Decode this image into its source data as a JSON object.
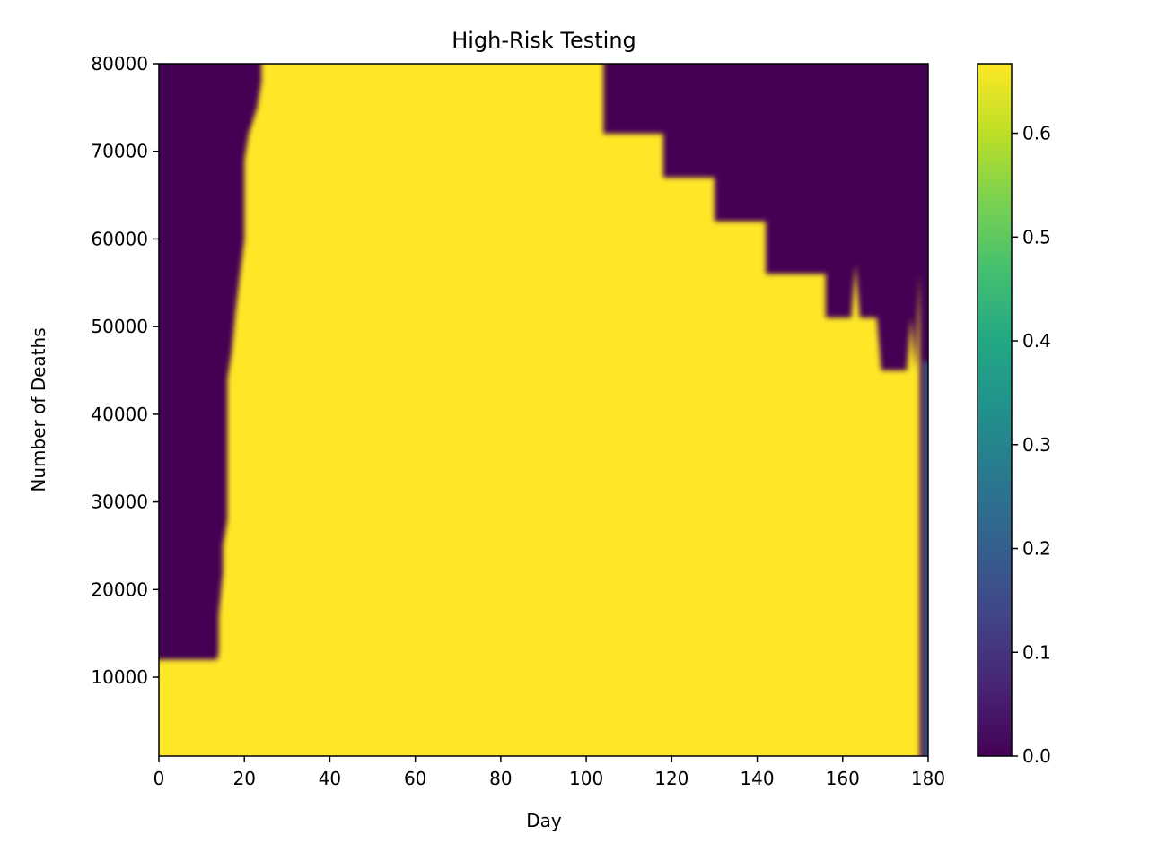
{
  "chart_data": {
    "type": "heatmap",
    "title": "High-Risk Testing",
    "xlabel": "Day",
    "ylabel": "Number of Deaths",
    "xlim": [
      0,
      180
    ],
    "ylim": [
      1000,
      80000
    ],
    "x_ticks": [
      "0",
      "20",
      "40",
      "60",
      "80",
      "100",
      "120",
      "140",
      "160",
      "180"
    ],
    "y_ticks": [
      "10000",
      "20000",
      "30000",
      "40000",
      "50000",
      "60000",
      "70000",
      "80000"
    ],
    "colorbar": {
      "colormap": "viridis",
      "range": [
        0,
        0.667
      ],
      "ticks": [
        "0.0",
        "0.1",
        "0.2",
        "0.3",
        "0.4",
        "0.5",
        "0.6"
      ]
    },
    "grid": false,
    "boundary_left": [
      [
        1000,
        13
      ],
      [
        5000,
        13
      ],
      [
        10000,
        13
      ],
      [
        13000,
        14
      ],
      [
        17000,
        14
      ],
      [
        22000,
        15
      ],
      [
        25000,
        15
      ],
      [
        28000,
        16
      ],
      [
        33000,
        16
      ],
      [
        38000,
        16
      ],
      [
        44000,
        16
      ],
      [
        47000,
        17
      ],
      [
        52000,
        18
      ],
      [
        56000,
        19
      ],
      [
        60000,
        20
      ],
      [
        65000,
        20
      ],
      [
        69000,
        20
      ],
      [
        72000,
        21
      ],
      [
        75000,
        23
      ],
      [
        78000,
        24
      ],
      [
        80000,
        24
      ]
    ],
    "left_region_band": {
      "day_start": 0,
      "day_end": 13,
      "deaths_from": 1000,
      "deaths_to": 12000
    },
    "boundary_right_upper": [
      [
        104,
        72000
      ],
      [
        118,
        72000
      ],
      [
        118,
        67000
      ],
      [
        130,
        67000
      ],
      [
        130,
        62000
      ],
      [
        142,
        62000
      ],
      [
        142,
        56000
      ],
      [
        156,
        56000
      ],
      [
        156,
        51000
      ],
      [
        162,
        51000
      ],
      [
        163,
        57000
      ],
      [
        164,
        51000
      ],
      [
        168,
        51000
      ],
      [
        169,
        45000
      ],
      [
        175,
        45000
      ],
      [
        176,
        51000
      ],
      [
        177,
        45000
      ],
      [
        178,
        56000
      ],
      [
        178,
        1000
      ]
    ],
    "right_edge_day": 179,
    "value_high": 0.667,
    "value_low": 0.0
  }
}
